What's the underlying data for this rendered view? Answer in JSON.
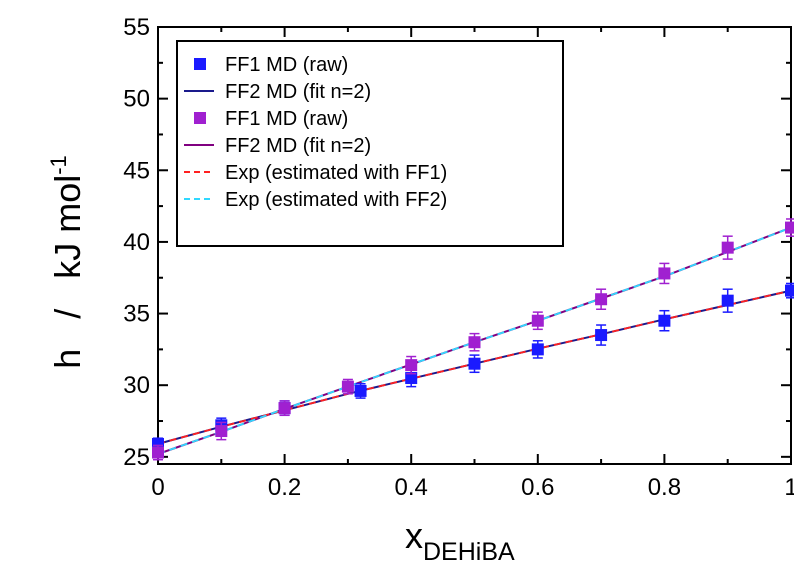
{
  "chart_data": {
    "type": "scatter",
    "xlabel": {
      "main": "x",
      "sub": "DEHiBA"
    },
    "ylabel": {
      "main": "h   /   kJ mol",
      "sup": "-1"
    },
    "xlim": [
      0,
      1
    ],
    "ylim": [
      24.5,
      55
    ],
    "xticks": [
      {
        "v": 0,
        "label": "0"
      },
      {
        "v": 0.2,
        "label": "0.2"
      },
      {
        "v": 0.4,
        "label": "0.4"
      },
      {
        "v": 0.6,
        "label": "0.6"
      },
      {
        "v": 0.8,
        "label": "0.8"
      },
      {
        "v": 1,
        "label": "1"
      }
    ],
    "yticks": [
      {
        "v": 25,
        "label": "25"
      },
      {
        "v": 30,
        "label": "30"
      },
      {
        "v": 35,
        "label": "35"
      },
      {
        "v": 40,
        "label": "40"
      },
      {
        "v": 45,
        "label": "45"
      },
      {
        "v": 50,
        "label": "50"
      },
      {
        "v": 55,
        "label": "55"
      }
    ],
    "series": [
      {
        "name": "FF1 MD (raw)",
        "kind": "points",
        "color": "#1a1aff",
        "x": [
          0,
          0.1,
          0.2,
          0.32,
          0.4,
          0.5,
          0.6,
          0.7,
          0.8,
          0.9,
          1.0
        ],
        "y": [
          25.9,
          27.2,
          28.4,
          29.6,
          30.5,
          31.5,
          32.5,
          33.5,
          34.5,
          35.9,
          36.6
        ],
        "err": [
          0.4,
          0.5,
          0.5,
          0.5,
          0.6,
          0.6,
          0.6,
          0.7,
          0.7,
          0.8,
          0.5
        ]
      },
      {
        "name": "FF2 MD (fit n=2)",
        "kind": "line",
        "color": "#1a1a8c",
        "x": [
          0,
          0.1,
          0.2,
          0.3,
          0.4,
          0.5,
          0.6,
          0.7,
          0.8,
          0.9,
          1.0
        ],
        "y": [
          25.9,
          27.1,
          28.25,
          29.4,
          30.45,
          31.5,
          32.55,
          33.55,
          34.6,
          35.6,
          36.6
        ]
      },
      {
        "name": "FF1 MD (raw)",
        "kind": "points",
        "color": "#a020d0",
        "x": [
          0,
          0.1,
          0.2,
          0.3,
          0.4,
          0.5,
          0.6,
          0.7,
          0.8,
          0.9,
          1.0
        ],
        "y": [
          25.3,
          26.8,
          28.4,
          29.9,
          31.4,
          33.0,
          34.5,
          36.0,
          37.8,
          39.6,
          41.0
        ],
        "err": [
          0.5,
          0.6,
          0.5,
          0.5,
          0.6,
          0.6,
          0.6,
          0.7,
          0.7,
          0.8,
          0.6
        ]
      },
      {
        "name": "FF2 MD (fit n=2)",
        "kind": "line",
        "color": "#800080",
        "x": [
          0,
          0.1,
          0.2,
          0.3,
          0.4,
          0.5,
          0.6,
          0.7,
          0.8,
          0.9,
          1.0
        ],
        "y": [
          25.2,
          26.75,
          28.35,
          29.9,
          31.45,
          33.0,
          34.5,
          36.05,
          37.6,
          39.3,
          41.0
        ]
      },
      {
        "name": "Exp (estimated with FF1)",
        "kind": "dashed",
        "color": "#ff2020",
        "x": [
          0,
          0.1,
          0.2,
          0.3,
          0.4,
          0.5,
          0.6,
          0.7,
          0.8,
          0.9,
          1.0
        ],
        "y": [
          25.9,
          27.1,
          28.25,
          29.4,
          30.45,
          31.5,
          32.55,
          33.55,
          34.6,
          35.6,
          36.6
        ]
      },
      {
        "name": "Exp (estimated with FF2)",
        "kind": "dashed",
        "color": "#30d8ff",
        "x": [
          0,
          0.1,
          0.2,
          0.3,
          0.4,
          0.5,
          0.6,
          0.7,
          0.8,
          0.9,
          1.0
        ],
        "y": [
          25.2,
          26.75,
          28.35,
          29.9,
          31.45,
          33.0,
          34.5,
          36.05,
          37.6,
          39.3,
          41.0
        ]
      }
    ],
    "legend": "top-left",
    "grid": false
  }
}
